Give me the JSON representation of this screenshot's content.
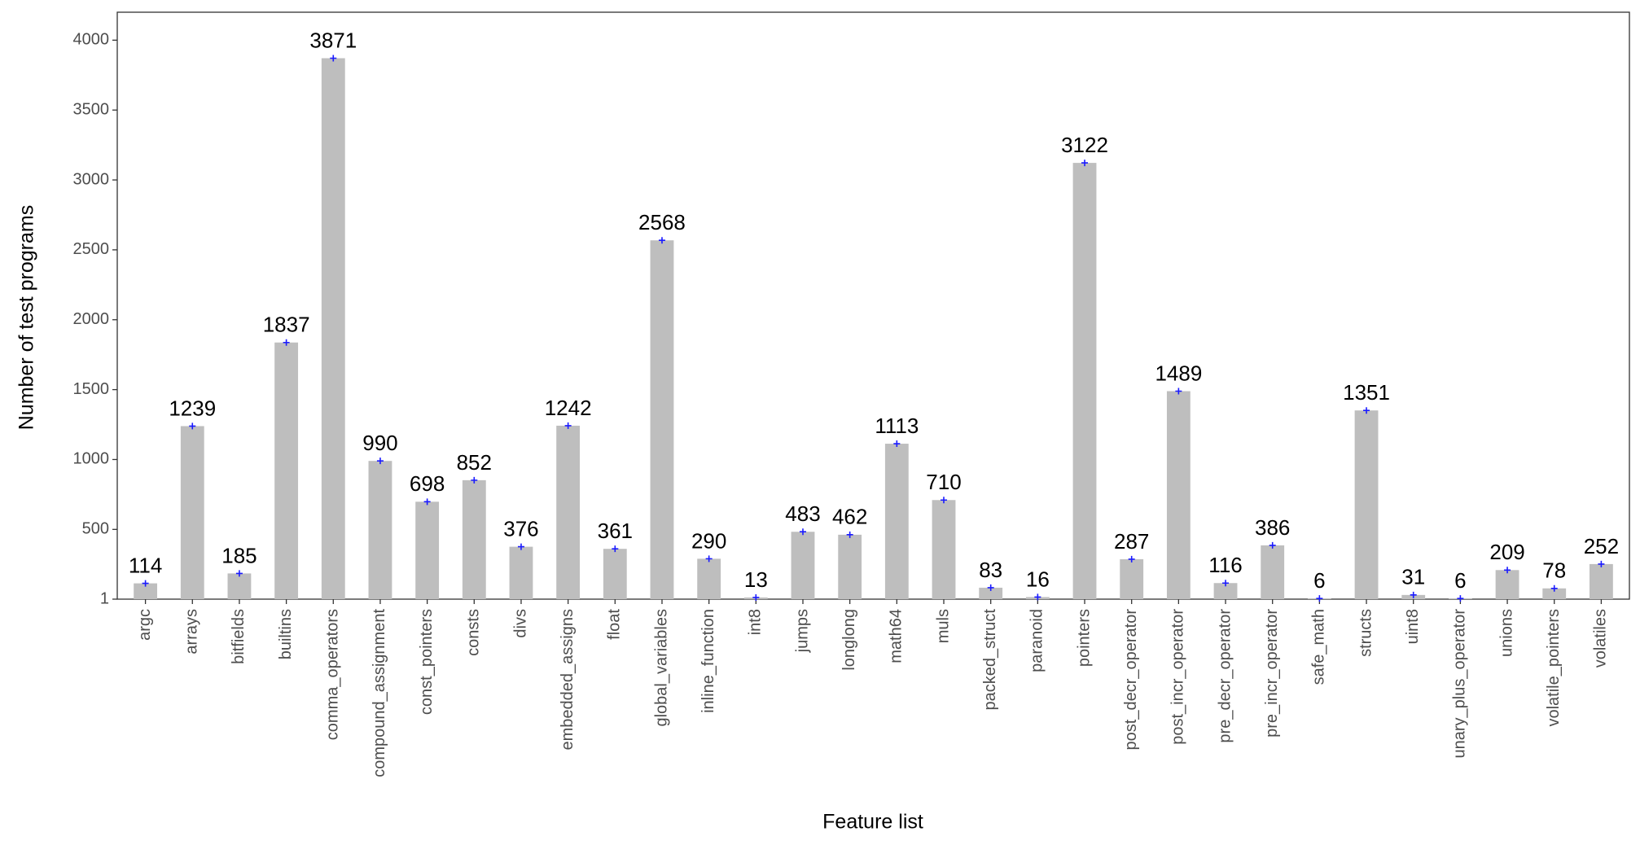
{
  "chart_data": {
    "type": "bar",
    "x_label": "Feature list",
    "y_label": "Number of test programs",
    "categories": [
      "argc",
      "arrays",
      "bitfields",
      "builtins",
      "comma_operators",
      "compound_assignment",
      "const_pointers",
      "consts",
      "divs",
      "embedded_assigns",
      "float",
      "global_variables",
      "inline_function",
      "int8",
      "jumps",
      "longlong",
      "math64",
      "muls",
      "packed_struct",
      "paranoid",
      "pointers",
      "post_decr_operator",
      "post_incr_operator",
      "pre_decr_operator",
      "pre_incr_operator",
      "safe_math",
      "structs",
      "uint8",
      "unary_plus_operator",
      "unions",
      "volatile_pointers",
      "volatiles"
    ],
    "values": [
      114,
      1239,
      185,
      1837,
      3871,
      990,
      698,
      852,
      376,
      1242,
      361,
      2568,
      290,
      13,
      483,
      462,
      1113,
      710,
      83,
      16,
      3122,
      287,
      1489,
      116,
      386,
      6,
      1351,
      31,
      6,
      209,
      78,
      252
    ],
    "color": "#bebebe",
    "marker_color": "#1a1aff",
    "ylim": [
      1,
      4200
    ],
    "yticks": [
      1,
      500,
      1000,
      1500,
      2000,
      2500,
      3000,
      3500,
      4000
    ],
    "grid": false
  }
}
